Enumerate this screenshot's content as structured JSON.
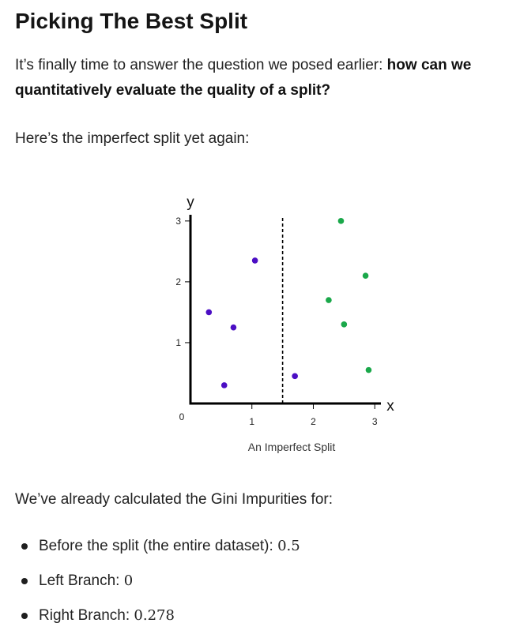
{
  "heading": "Picking The Best Split",
  "intro": {
    "text": "It’s finally time to answer the question we posed earlier: ",
    "bold": "how can we quantitatively evaluate the quality of a split?"
  },
  "lead": "Here’s the imperfect split yet again:",
  "figure": {
    "caption": "An Imperfect Split",
    "colors": {
      "class_a": "#4b0ec4",
      "class_b": "#1aa84a"
    }
  },
  "chart_data": {
    "type": "scatter",
    "title": "",
    "xlabel": "x",
    "ylabel": "y",
    "xlim": [
      0,
      3.1
    ],
    "ylim": [
      0,
      3.05
    ],
    "x_ticks": [
      "1",
      "2",
      "3"
    ],
    "y_ticks": [
      "1",
      "2",
      "3"
    ],
    "origin_label": "0",
    "split_x": 1.5,
    "grid": false,
    "series": [
      {
        "color": "#4b0ec4",
        "points": [
          {
            "x": 0.3,
            "y": 1.5
          },
          {
            "x": 0.55,
            "y": 0.3
          },
          {
            "x": 0.7,
            "y": 1.25
          },
          {
            "x": 1.05,
            "y": 2.35
          },
          {
            "x": 1.7,
            "y": 0.45
          }
        ]
      },
      {
        "color": "#1aa84a",
        "points": [
          {
            "x": 2.25,
            "y": 1.7
          },
          {
            "x": 2.45,
            "y": 3.0
          },
          {
            "x": 2.5,
            "y": 1.3
          },
          {
            "x": 2.85,
            "y": 2.1
          },
          {
            "x": 2.9,
            "y": 0.55
          }
        ]
      }
    ]
  },
  "summary": "We’ve already calculated the Gini Impurities for:",
  "bullets": [
    {
      "label": "Before the split (the entire dataset): ",
      "value": "0.5"
    },
    {
      "label": "Left Branch: ",
      "value": "0"
    },
    {
      "label": "Right Branch: ",
      "value": "0.278"
    }
  ]
}
